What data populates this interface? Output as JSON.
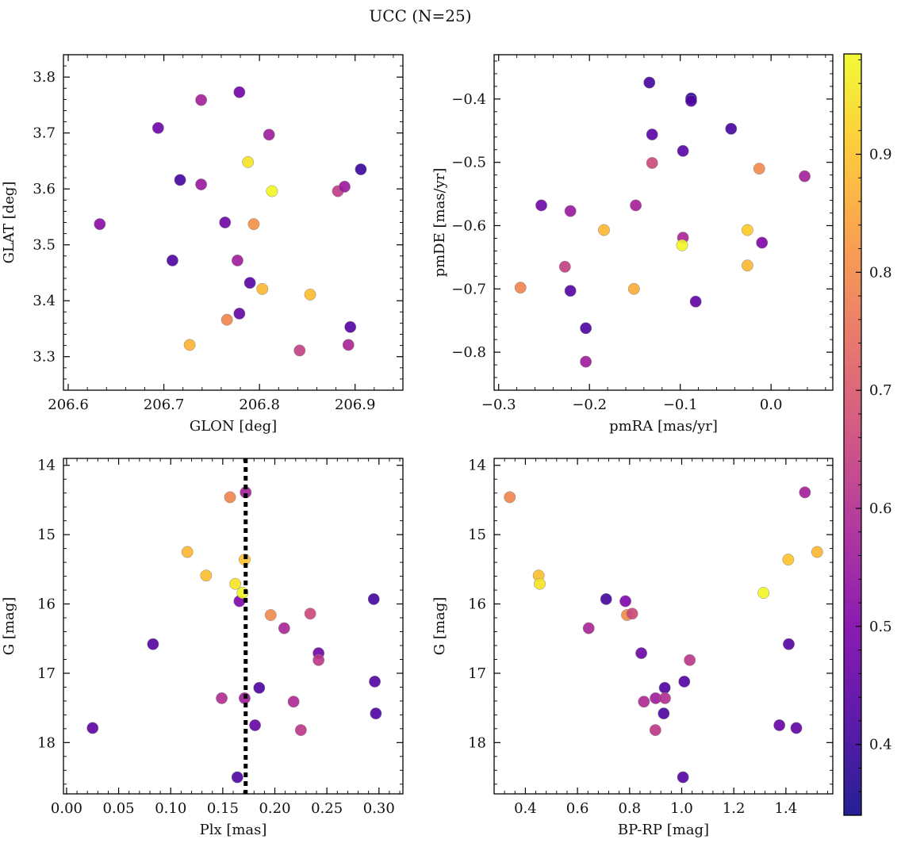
{
  "figure": {
    "title": "UCC (N=25)"
  },
  "colorbar": {
    "min": 0.34,
    "max": 0.985,
    "ticks": [
      0.4,
      0.5,
      0.6,
      0.7,
      0.8,
      0.9
    ],
    "tick_labels": [
      "0.4",
      "0.5",
      "0.6",
      "0.7",
      "0.8",
      "0.9"
    ],
    "colormap": "plasma"
  },
  "overlay": {
    "plx_line_value": 0.172
  },
  "chart_data": [
    {
      "type": "scatter",
      "xlabel": "GLON [deg]",
      "ylabel": "GLAT [deg]",
      "xlim": [
        206.595,
        206.95
      ],
      "ylim": [
        3.24,
        3.84
      ],
      "xticks": [
        206.6,
        206.7,
        206.8,
        206.9
      ],
      "xtick_labels": [
        "206.6",
        "206.7",
        "206.8",
        "206.9"
      ],
      "yticks": [
        3.3,
        3.4,
        3.5,
        3.6,
        3.7,
        3.8
      ],
      "ytick_labels": [
        "3.3",
        "3.4",
        "3.5",
        "3.6",
        "3.7",
        "3.8"
      ],
      "points": [
        {
          "x": 206.633,
          "y": 3.537,
          "c": 0.52
        },
        {
          "x": 206.694,
          "y": 3.709,
          "c": 0.47
        },
        {
          "x": 206.709,
          "y": 3.472,
          "c": 0.42
        },
        {
          "x": 206.717,
          "y": 3.616,
          "c": 0.41
        },
        {
          "x": 206.727,
          "y": 3.321,
          "c": 0.87
        },
        {
          "x": 206.739,
          "y": 3.759,
          "c": 0.57
        },
        {
          "x": 206.739,
          "y": 3.608,
          "c": 0.55
        },
        {
          "x": 206.764,
          "y": 3.54,
          "c": 0.47
        },
        {
          "x": 206.766,
          "y": 3.366,
          "c": 0.79
        },
        {
          "x": 206.777,
          "y": 3.472,
          "c": 0.56
        },
        {
          "x": 206.779,
          "y": 3.773,
          "c": 0.48
        },
        {
          "x": 206.779,
          "y": 3.377,
          "c": 0.46
        },
        {
          "x": 206.788,
          "y": 3.648,
          "c": 0.95
        },
        {
          "x": 206.79,
          "y": 3.432,
          "c": 0.44
        },
        {
          "x": 206.794,
          "y": 3.537,
          "c": 0.81
        },
        {
          "x": 206.803,
          "y": 3.421,
          "c": 0.88
        },
        {
          "x": 206.81,
          "y": 3.697,
          "c": 0.56
        },
        {
          "x": 206.813,
          "y": 3.596,
          "c": 0.98
        },
        {
          "x": 206.842,
          "y": 3.311,
          "c": 0.64
        },
        {
          "x": 206.853,
          "y": 3.411,
          "c": 0.89
        },
        {
          "x": 206.882,
          "y": 3.596,
          "c": 0.63
        },
        {
          "x": 206.889,
          "y": 3.604,
          "c": 0.55
        },
        {
          "x": 206.893,
          "y": 3.321,
          "c": 0.58
        },
        {
          "x": 206.895,
          "y": 3.353,
          "c": 0.43
        },
        {
          "x": 206.906,
          "y": 3.635,
          "c": 0.4
        }
      ]
    },
    {
      "type": "scatter",
      "xlabel": "pmRA [mas/yr]",
      "ylabel": "pmDE [mas/yr]",
      "xlim": [
        -0.305,
        0.068
      ],
      "ylim": [
        -0.86,
        -0.33
      ],
      "xticks": [
        -0.3,
        -0.2,
        -0.1,
        0.0
      ],
      "xtick_labels": [
        "−0.3",
        "−0.2",
        "−0.1",
        "0.0"
      ],
      "yticks": [
        -0.8,
        -0.7,
        -0.6,
        -0.5,
        -0.4
      ],
      "ytick_labels": [
        "−0.8",
        "−0.7",
        "−0.6",
        "−0.5",
        "−0.4"
      ],
      "points": [
        {
          "x": -0.276,
          "y": -0.698,
          "c": 0.79
        },
        {
          "x": -0.253,
          "y": -0.568,
          "c": 0.47
        },
        {
          "x": -0.227,
          "y": -0.665,
          "c": 0.64
        },
        {
          "x": -0.221,
          "y": -0.577,
          "c": 0.55
        },
        {
          "x": -0.221,
          "y": -0.703,
          "c": 0.43
        },
        {
          "x": -0.204,
          "y": -0.762,
          "c": 0.42
        },
        {
          "x": -0.204,
          "y": -0.815,
          "c": 0.56
        },
        {
          "x": -0.184,
          "y": -0.607,
          "c": 0.88
        },
        {
          "x": -0.151,
          "y": -0.7,
          "c": 0.86
        },
        {
          "x": -0.149,
          "y": -0.568,
          "c": 0.57
        },
        {
          "x": -0.134,
          "y": -0.374,
          "c": 0.41
        },
        {
          "x": -0.131,
          "y": -0.456,
          "c": 0.44
        },
        {
          "x": -0.131,
          "y": -0.501,
          "c": 0.66
        },
        {
          "x": -0.097,
          "y": -0.482,
          "c": 0.44
        },
        {
          "x": -0.097,
          "y": -0.619,
          "c": 0.58
        },
        {
          "x": -0.098,
          "y": -0.631,
          "c": 0.98
        },
        {
          "x": -0.088,
          "y": -0.399,
          "c": 0.38
        },
        {
          "x": -0.088,
          "y": -0.403,
          "c": 0.42
        },
        {
          "x": -0.083,
          "y": -0.72,
          "c": 0.45
        },
        {
          "x": -0.044,
          "y": -0.447,
          "c": 0.41
        },
        {
          "x": -0.026,
          "y": -0.607,
          "c": 0.91
        },
        {
          "x": -0.026,
          "y": -0.663,
          "c": 0.88
        },
        {
          "x": -0.013,
          "y": -0.51,
          "c": 0.8
        },
        {
          "x": -0.01,
          "y": -0.627,
          "c": 0.5
        },
        {
          "x": 0.037,
          "y": -0.522,
          "c": 0.57
        }
      ]
    },
    {
      "type": "scatter",
      "xlabel": "Plx [mas]",
      "ylabel": "G [mag]",
      "xlim": [
        -0.003,
        0.323
      ],
      "ylim": [
        18.74,
        13.9
      ],
      "xticks": [
        0.0,
        0.05,
        0.1,
        0.15,
        0.2,
        0.25,
        0.3
      ],
      "xtick_labels": [
        "0.00",
        "0.05",
        "0.10",
        "0.15",
        "0.20",
        "0.25",
        "0.30"
      ],
      "yticks": [
        14,
        15,
        16,
        17,
        18
      ],
      "ytick_labels": [
        "14",
        "15",
        "16",
        "17",
        "18"
      ],
      "points": [
        {
          "x": 0.025,
          "y": 17.79,
          "c": 0.45
        },
        {
          "x": 0.083,
          "y": 16.58,
          "c": 0.43
        },
        {
          "x": 0.116,
          "y": 15.25,
          "c": 0.88
        },
        {
          "x": 0.134,
          "y": 15.59,
          "c": 0.89
        },
        {
          "x": 0.149,
          "y": 17.36,
          "c": 0.6
        },
        {
          "x": 0.157,
          "y": 14.46,
          "c": 0.79
        },
        {
          "x": 0.162,
          "y": 15.71,
          "c": 0.95
        },
        {
          "x": 0.164,
          "y": 18.5,
          "c": 0.43
        },
        {
          "x": 0.166,
          "y": 15.96,
          "c": 0.5
        },
        {
          "x": 0.169,
          "y": 15.84,
          "c": 0.98
        },
        {
          "x": 0.171,
          "y": 15.36,
          "c": 0.9
        },
        {
          "x": 0.172,
          "y": 14.39,
          "c": 0.57
        },
        {
          "x": 0.171,
          "y": 17.36,
          "c": 0.56
        },
        {
          "x": 0.181,
          "y": 17.75,
          "c": 0.46
        },
        {
          "x": 0.185,
          "y": 17.21,
          "c": 0.42
        },
        {
          "x": 0.196,
          "y": 16.16,
          "c": 0.8
        },
        {
          "x": 0.209,
          "y": 16.35,
          "c": 0.58
        },
        {
          "x": 0.218,
          "y": 17.41,
          "c": 0.59
        },
        {
          "x": 0.225,
          "y": 17.82,
          "c": 0.62
        },
        {
          "x": 0.234,
          "y": 16.14,
          "c": 0.66
        },
        {
          "x": 0.242,
          "y": 16.71,
          "c": 0.47
        },
        {
          "x": 0.242,
          "y": 16.81,
          "c": 0.62
        },
        {
          "x": 0.295,
          "y": 15.93,
          "c": 0.41
        },
        {
          "x": 0.296,
          "y": 17.12,
          "c": 0.43
        },
        {
          "x": 0.297,
          "y": 17.58,
          "c": 0.42
        }
      ]
    },
    {
      "type": "scatter",
      "xlabel": "BP-RP [mag]",
      "ylabel": "G [mag]",
      "xlim": [
        0.28,
        1.58
      ],
      "ylim": [
        18.74,
        13.9
      ],
      "xticks": [
        0.4,
        0.6,
        0.8,
        1.0,
        1.2,
        1.4
      ],
      "xtick_labels": [
        "0.4",
        "0.6",
        "0.8",
        "1.0",
        "1.2",
        "1.4"
      ],
      "yticks": [
        14,
        15,
        16,
        17,
        18
      ],
      "ytick_labels": [
        "14",
        "15",
        "16",
        "17",
        "18"
      ],
      "points": [
        {
          "x": 0.34,
          "y": 14.46,
          "c": 0.79
        },
        {
          "x": 0.451,
          "y": 15.59,
          "c": 0.89
        },
        {
          "x": 0.455,
          "y": 15.71,
          "c": 0.95
        },
        {
          "x": 0.643,
          "y": 16.35,
          "c": 0.58
        },
        {
          "x": 0.71,
          "y": 15.93,
          "c": 0.41
        },
        {
          "x": 0.784,
          "y": 15.96,
          "c": 0.5
        },
        {
          "x": 0.79,
          "y": 16.16,
          "c": 0.8
        },
        {
          "x": 0.81,
          "y": 16.14,
          "c": 0.66
        },
        {
          "x": 0.845,
          "y": 16.71,
          "c": 0.47
        },
        {
          "x": 0.855,
          "y": 17.41,
          "c": 0.59
        },
        {
          "x": 0.9,
          "y": 17.36,
          "c": 0.56
        },
        {
          "x": 0.899,
          "y": 17.82,
          "c": 0.62
        },
        {
          "x": 0.935,
          "y": 17.21,
          "c": 0.42
        },
        {
          "x": 0.931,
          "y": 17.58,
          "c": 0.42
        },
        {
          "x": 0.936,
          "y": 17.36,
          "c": 0.6
        },
        {
          "x": 1.005,
          "y": 18.5,
          "c": 0.43
        },
        {
          "x": 1.01,
          "y": 17.12,
          "c": 0.43
        },
        {
          "x": 1.031,
          "y": 16.81,
          "c": 0.62
        },
        {
          "x": 1.314,
          "y": 15.84,
          "c": 0.98
        },
        {
          "x": 1.375,
          "y": 17.75,
          "c": 0.46
        },
        {
          "x": 1.409,
          "y": 15.36,
          "c": 0.9
        },
        {
          "x": 1.411,
          "y": 16.58,
          "c": 0.43
        },
        {
          "x": 1.44,
          "y": 17.79,
          "c": 0.45
        },
        {
          "x": 1.473,
          "y": 14.39,
          "c": 0.57
        },
        {
          "x": 1.52,
          "y": 15.25,
          "c": 0.88
        }
      ]
    }
  ]
}
